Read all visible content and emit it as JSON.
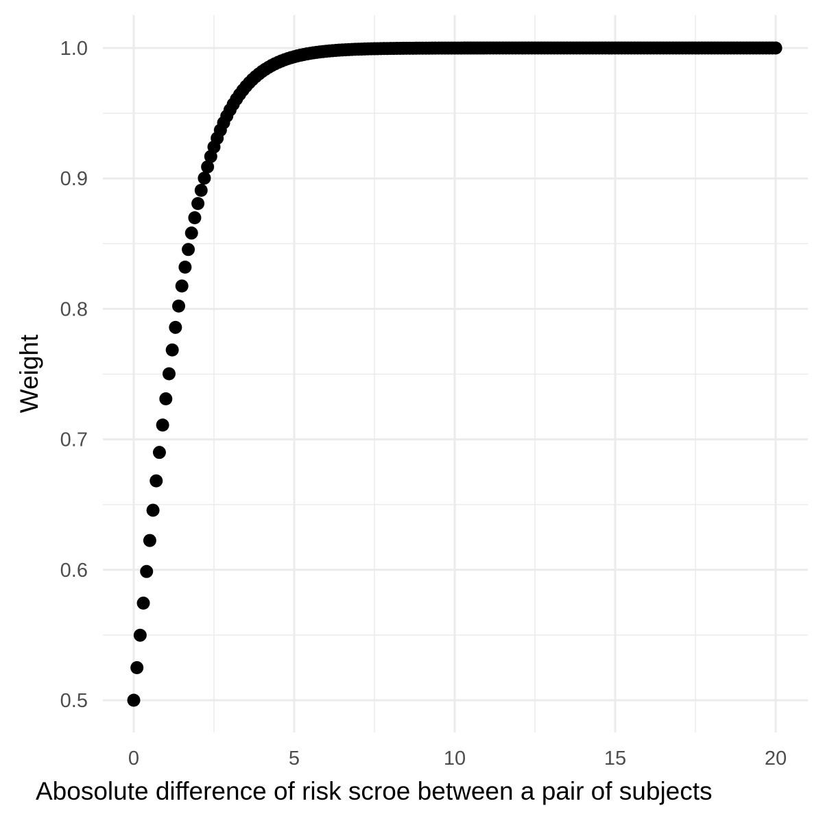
{
  "chart_data": {
    "type": "scatter",
    "title": "",
    "xlabel": "Abosolute difference of risk scroe between a pair of subjects",
    "ylabel": "Weight",
    "xlim": [
      0,
      20
    ],
    "ylim": [
      0.5,
      1.0
    ],
    "x_ticks": [
      0,
      5,
      10,
      15,
      20
    ],
    "x_tick_labels": [
      "0",
      "5",
      "10",
      "15",
      "20"
    ],
    "y_ticks": [
      0.5,
      0.6,
      0.7,
      0.8,
      0.9,
      1.0
    ],
    "y_tick_labels": [
      "0.5",
      "0.6",
      "0.7",
      "0.8",
      "0.9",
      "1.0"
    ],
    "grid": true,
    "legend": "none",
    "point_color": "#000000",
    "series": [
      {
        "x_start": 0,
        "x_end": 20,
        "x_step": 0.1,
        "function": "1 / (1 + exp(-x))",
        "points_sample": [
          {
            "x": 0,
            "y": 0.5
          },
          {
            "x": 0.5,
            "y": 0.622
          },
          {
            "x": 1,
            "y": 0.731
          },
          {
            "x": 2,
            "y": 0.881
          },
          {
            "x": 3,
            "y": 0.953
          },
          {
            "x": 5,
            "y": 0.993
          },
          {
            "x": 10,
            "y": 1.0
          },
          {
            "x": 20,
            "y": 1.0
          }
        ]
      }
    ]
  }
}
